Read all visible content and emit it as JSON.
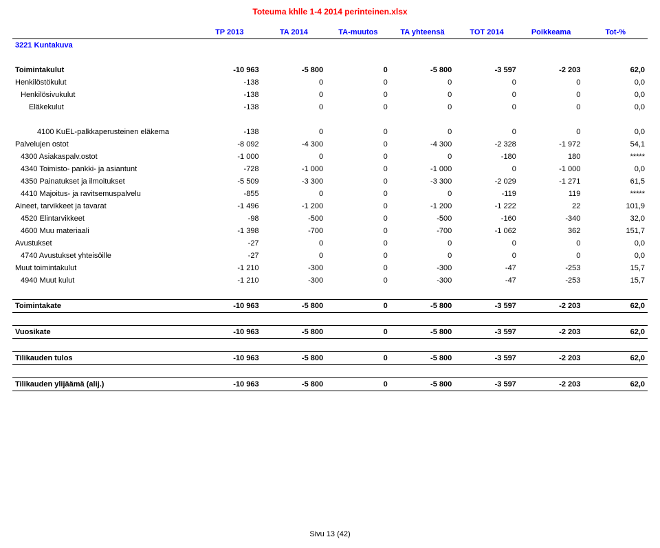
{
  "doc_title": "Toteuma khlle 1-4 2014 perinteinen.xlsx",
  "footer": "Sivu 13 (42)",
  "columns": [
    "TP 2013",
    "TA 2014",
    "TA-muutos",
    "TA yhteensä",
    "TOT 2014",
    "Poikkeama",
    "Tot-%"
  ],
  "section": "3221 Kuntakuva",
  "rows": [
    {
      "k": "r0",
      "label": "Toimintakulut",
      "indent": 0,
      "style": "bold",
      "v": [
        "-10 963",
        "-5 800",
        "0",
        "-5 800",
        "-3 597",
        "-2 203",
        "62,0"
      ]
    },
    {
      "k": "r1",
      "label": "Henkilöstökulut",
      "indent": 0,
      "style": "",
      "v": [
        "-138",
        "0",
        "0",
        "0",
        "0",
        "0",
        "0,0"
      ]
    },
    {
      "k": "r2",
      "label": "Henkilösivukulut",
      "indent": 1,
      "style": "",
      "v": [
        "-138",
        "0",
        "0",
        "0",
        "0",
        "0",
        "0,0"
      ]
    },
    {
      "k": "r3",
      "label": "Eläkekulut",
      "indent": 2,
      "style": "",
      "v": [
        "-138",
        "0",
        "0",
        "0",
        "0",
        "0",
        "0,0"
      ]
    },
    {
      "k": "sp1",
      "spacer": true
    },
    {
      "k": "r4",
      "label": "4100 KuEL-palkkaperusteinen eläkema",
      "indent": 3,
      "style": "",
      "v": [
        "-138",
        "0",
        "0",
        "0",
        "0",
        "0",
        "0,0"
      ]
    },
    {
      "k": "r5",
      "label": "Palvelujen ostot",
      "indent": 0,
      "style": "",
      "v": [
        "-8 092",
        "-4 300",
        "0",
        "-4 300",
        "-2 328",
        "-1 972",
        "54,1"
      ]
    },
    {
      "k": "r6",
      "label": "4300 Asiakaspalv.ostot",
      "indent": 1,
      "style": "",
      "v": [
        "-1 000",
        "0",
        "0",
        "0",
        "-180",
        "180",
        "*****"
      ]
    },
    {
      "k": "r7",
      "label": "4340 Toimisto- pankki- ja asiantunt",
      "indent": 1,
      "style": "",
      "v": [
        "-728",
        "-1 000",
        "0",
        "-1 000",
        "0",
        "-1 000",
        "0,0"
      ]
    },
    {
      "k": "r8",
      "label": "4350 Painatukset ja ilmoitukset",
      "indent": 1,
      "style": "",
      "v": [
        "-5 509",
        "-3 300",
        "0",
        "-3 300",
        "-2 029",
        "-1 271",
        "61,5"
      ]
    },
    {
      "k": "r9",
      "label": "4410 Majoitus- ja ravitsemuspalvelu",
      "indent": 1,
      "style": "",
      "v": [
        "-855",
        "0",
        "0",
        "0",
        "-119",
        "119",
        "*****"
      ]
    },
    {
      "k": "r10",
      "label": "Aineet, tarvikkeet ja tavarat",
      "indent": 0,
      "style": "",
      "v": [
        "-1 496",
        "-1 200",
        "0",
        "-1 200",
        "-1 222",
        "22",
        "101,9"
      ]
    },
    {
      "k": "r11",
      "label": "4520 Elintarvikkeet",
      "indent": 1,
      "style": "",
      "v": [
        "-98",
        "-500",
        "0",
        "-500",
        "-160",
        "-340",
        "32,0"
      ]
    },
    {
      "k": "r12",
      "label": "4600 Muu materiaali",
      "indent": 1,
      "style": "",
      "v": [
        "-1 398",
        "-700",
        "0",
        "-700",
        "-1 062",
        "362",
        "151,7"
      ]
    },
    {
      "k": "r13",
      "label": "Avustukset",
      "indent": 0,
      "style": "",
      "v": [
        "-27",
        "0",
        "0",
        "0",
        "0",
        "0",
        "0,0"
      ]
    },
    {
      "k": "r14",
      "label": "4740 Avustukset yhteisöille",
      "indent": 1,
      "style": "",
      "v": [
        "-27",
        "0",
        "0",
        "0",
        "0",
        "0",
        "0,0"
      ]
    },
    {
      "k": "r15",
      "label": "Muut toimintakulut",
      "indent": 0,
      "style": "",
      "v": [
        "-1 210",
        "-300",
        "0",
        "-300",
        "-47",
        "-253",
        "15,7"
      ]
    },
    {
      "k": "r16",
      "label": "4940 Muut kulut",
      "indent": 1,
      "style": "",
      "v": [
        "-1 210",
        "-300",
        "0",
        "-300",
        "-47",
        "-253",
        "15,7"
      ]
    }
  ],
  "totals": [
    {
      "k": "t1",
      "label": "Toimintakate",
      "v": [
        "-10 963",
        "-5 800",
        "0",
        "-5 800",
        "-3 597",
        "-2 203",
        "62,0"
      ]
    },
    {
      "k": "t2",
      "label": "Vuosikate",
      "v": [
        "-10 963",
        "-5 800",
        "0",
        "-5 800",
        "-3 597",
        "-2 203",
        "62,0"
      ]
    },
    {
      "k": "t3",
      "label": "Tilikauden tulos",
      "v": [
        "-10 963",
        "-5 800",
        "0",
        "-5 800",
        "-3 597",
        "-2 203",
        "62,0"
      ]
    },
    {
      "k": "t4",
      "label": "Tilikauden ylijäämä (alij.)",
      "v": [
        "-10 963",
        "-5 800",
        "0",
        "-5 800",
        "-3 597",
        "-2 203",
        "62,0"
      ]
    }
  ]
}
